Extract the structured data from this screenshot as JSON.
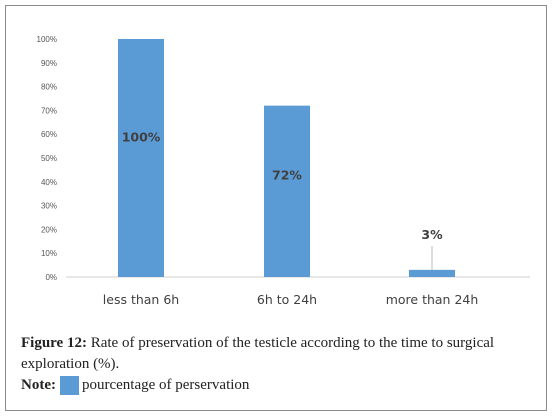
{
  "chart_data": {
    "type": "bar",
    "categories": [
      "less than 6h",
      "6h to 24h",
      "more than 24h"
    ],
    "values": [
      100,
      72,
      3
    ],
    "data_labels": [
      "100%",
      "72%",
      "3%"
    ],
    "ylim": [
      0,
      100
    ],
    "y_ticks": [
      0,
      10,
      20,
      30,
      40,
      50,
      60,
      70,
      80,
      90,
      100
    ],
    "y_tick_labels": [
      "0%",
      "10%",
      "20%",
      "30%",
      "40%",
      "50%",
      "60%",
      "70%",
      "80%",
      "90%",
      "100%"
    ],
    "grid": false,
    "bar_color": "#5b9bd5",
    "series": [
      {
        "name": "pourcentage of perservation",
        "values": [
          100,
          72,
          3
        ]
      }
    ]
  },
  "caption": {
    "figure_label": "Figure 12:",
    "text": " Rate of preservation of the testicle according to the time to surgical exploration (%)."
  },
  "note": {
    "label": "Note:",
    "legend_text": "pourcentage of perservation",
    "swatch_color": "#5b9bd5"
  }
}
